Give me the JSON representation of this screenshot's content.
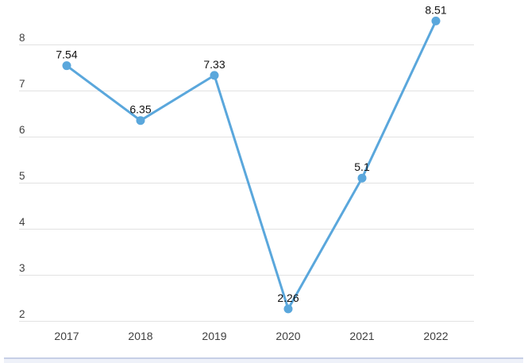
{
  "chart_data": {
    "type": "line",
    "title": "",
    "categories": [
      "2017",
      "2018",
      "2019",
      "2020",
      "2021",
      "2022"
    ],
    "series": [
      {
        "name": "value",
        "values": [
          7.54,
          6.35,
          7.33,
          2.26,
          5.1,
          8.51
        ]
      }
    ],
    "point_labels": [
      "7.54",
      "6.35",
      "7.33",
      "2.26",
      "5.1",
      "8.51"
    ],
    "xlabel": "",
    "ylabel": "",
    "y_ticks": [
      2,
      3,
      4,
      5,
      6,
      7,
      8
    ],
    "ylim": [
      2,
      8.6
    ],
    "grid": "horizontal-only",
    "legend": "none",
    "colors": {
      "line": "#5aa7dc",
      "marker": "#5aa7dc",
      "gridline": "#e2e2e2",
      "axis_tick_label": "#3f3f3f",
      "data_label": "#111111"
    }
  },
  "footer": {
    "cropped_element_note": ""
  }
}
